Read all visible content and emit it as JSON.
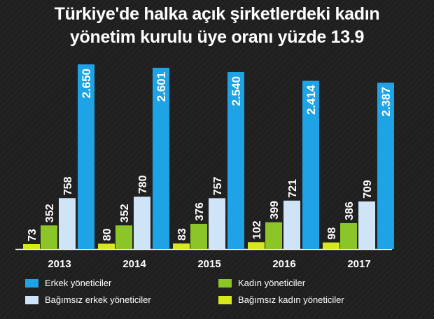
{
  "title_line1": "Türkiye'de halka açık şirketlerdeki kadın",
  "title_line2": "yönetim kurulu üye oranı yüzde 13.9",
  "colors": {
    "erkek": "#1ea3e6",
    "bagimsiz_erkek": "#cfe4f7",
    "kadin": "#8bc528",
    "bagimsiz_kadin": "#d7e81c",
    "axis": "#ffffff"
  },
  "legend": {
    "erkek": "Erkek yöneticiler",
    "bagimsiz_erkek": "Bağımsız erkek yöneticiler",
    "kadin": "Kadın yöneticiler",
    "bagimsiz_kadin": "Bağımsız kadın yöneticiler"
  },
  "chart_data": {
    "type": "bar",
    "title": "Türkiye'de halka açık şirketlerdeki kadın yönetim kurulu üye oranı yüzde 13.9",
    "categories": [
      "2013",
      "2014",
      "2015",
      "2016",
      "2017"
    ],
    "series": [
      {
        "name": "Bağımsız kadın yöneticiler",
        "values": [
          73,
          80,
          83,
          102,
          98
        ],
        "labels": [
          "73",
          "80",
          "83",
          "102",
          "98"
        ],
        "color": "#d7e81c"
      },
      {
        "name": "Kadın yöneticiler",
        "values": [
          352,
          352,
          376,
          399,
          386
        ],
        "labels": [
          "352",
          "352",
          "376",
          "399",
          "386"
        ],
        "color": "#8bc528"
      },
      {
        "name": "Bağımsız erkek yöneticiler",
        "values": [
          758,
          780,
          757,
          721,
          709
        ],
        "labels": [
          "758",
          "780",
          "757",
          "721",
          "709"
        ],
        "color": "#cfe4f7"
      },
      {
        "name": "Erkek yöneticiler",
        "values": [
          2650,
          2601,
          2540,
          2414,
          2387
        ],
        "labels": [
          "2.650",
          "2.601",
          "2.540",
          "2.414",
          "2.387"
        ],
        "color": "#1ea3e6"
      }
    ],
    "legend_position": "bottom",
    "grid": false
  }
}
